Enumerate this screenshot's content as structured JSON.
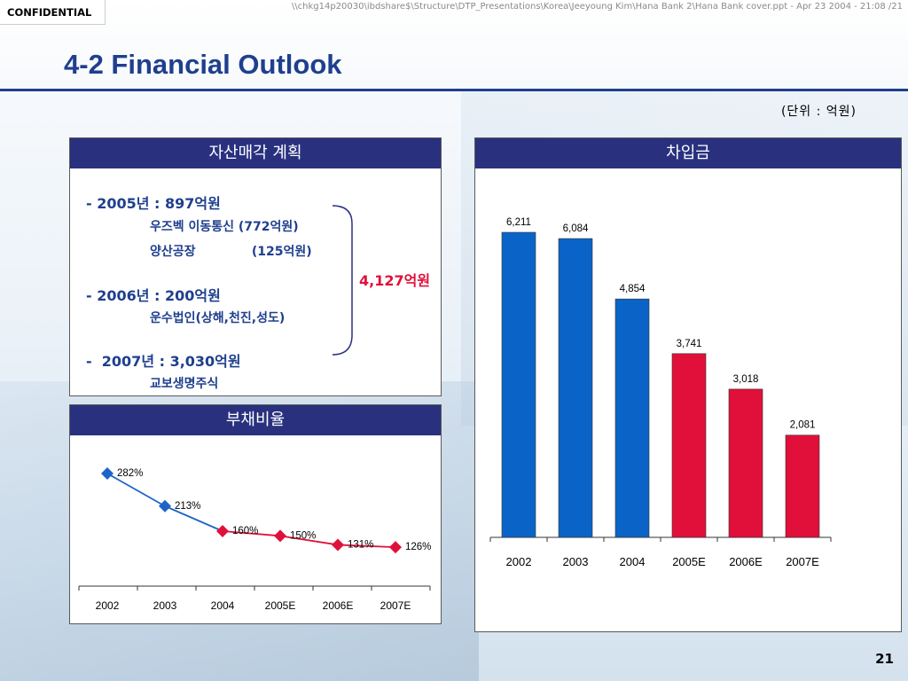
{
  "header": {
    "confidential": "CONFIDENTIAL",
    "file_path": "\\\\chkg14p20030\\ibdshare$\\Structure\\DTP_Presentations\\Korea\\Jeeyoung Kim\\Hana Bank 2\\Hana Bank cover.ppt - Apr 23 2004 - 21:08 /21",
    "title": "4-2 Financial Outlook",
    "unit": "(단위 : 억원)"
  },
  "asset_sale": {
    "heading": "자산매각 계획",
    "line_2005": "- 2005년 : 897억원",
    "sub_2005_a": "우즈벡 이동통신  (772억원)",
    "sub_2005_b": "양산공장             (125억원)",
    "line_2006": "- 2006년 : 200억원",
    "sub_2006": "운수법인(상해,천진,성도)",
    "line_2007": "-  2007년 : 3,030억원",
    "sub_2007": "교보생명주식",
    "total": "4,127억원"
  },
  "debt_ratio": {
    "heading": "부채비율"
  },
  "borrowings": {
    "heading": "차입금"
  },
  "page_number": "21",
  "chart_data": [
    {
      "type": "line",
      "categories": [
        "2002",
        "2003",
        "2004",
        "2005E",
        "2006E",
        "2007E"
      ],
      "values": [
        282,
        213,
        160,
        150,
        131,
        126
      ],
      "labels": [
        "282%",
        "213%",
        "160%",
        "150%",
        "131%",
        "126%"
      ],
      "colors": {
        "actual": "#1e64c8",
        "forecast": "#e0103a"
      },
      "forecast_from_index": 2,
      "title": "부채비율"
    },
    {
      "type": "bar",
      "categories": [
        "2002",
        "2003",
        "2004",
        "2005E",
        "2006E",
        "2007E"
      ],
      "values": [
        6211,
        6084,
        4854,
        3741,
        3018,
        2081
      ],
      "labels": [
        "6,211",
        "6,084",
        "4,854",
        "3,741",
        "3,018",
        "2,081"
      ],
      "colors": {
        "actual": "#0a64c8",
        "forecast": "#e0103a"
      },
      "forecast_from_index": 3,
      "title": "차입금"
    }
  ]
}
